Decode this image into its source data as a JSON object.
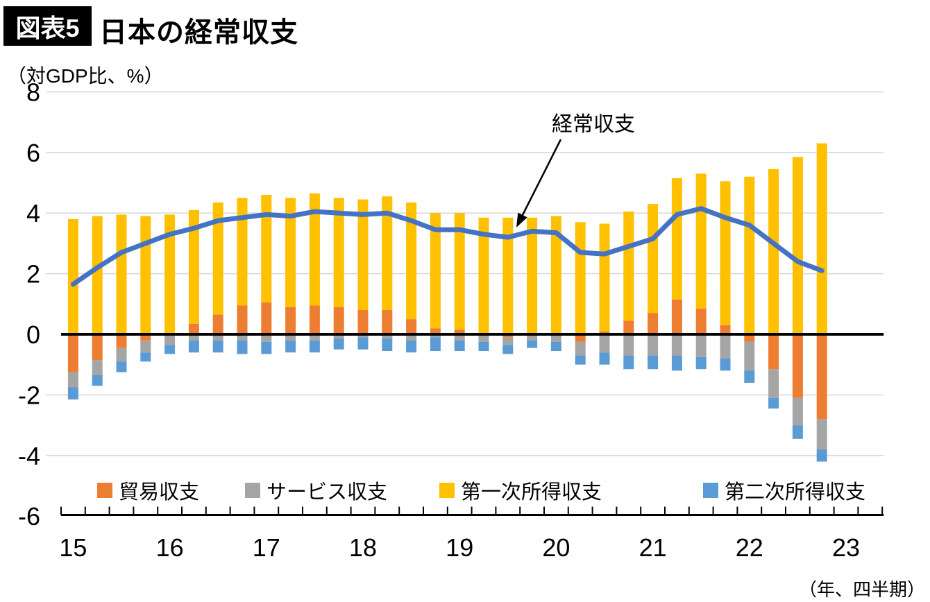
{
  "figure": {
    "tag": "図表5",
    "title": "日本の経常収支",
    "unit_label": "（対GDP比、%）",
    "axis_note": "（年、四半期）",
    "line_annotation": "経常収支"
  },
  "colors": {
    "trade_balance": "#ED7D31",
    "services_balance": "#A5A5A5",
    "primary_income": "#FFC000",
    "secondary_income": "#5B9BD5",
    "current_account_line": "#4472C4",
    "gridline": "#D9D9D9",
    "axis": "#000000"
  },
  "chart_data": {
    "type": "bar",
    "subtype": "stacked-bars-with-line",
    "title": "日本の経常収支",
    "ylabel": "（対GDP比、%）",
    "xlabel": "（年、四半期）",
    "ylim": [
      -6,
      8
    ],
    "ytick_step": 2,
    "ytick_labels": [
      "8",
      "6",
      "4",
      "2",
      "0",
      "-2",
      "-4",
      "-6"
    ],
    "grid": true,
    "legend_position": "bottom-inside",
    "categories": [
      "15Q1",
      "15Q2",
      "15Q3",
      "15Q4",
      "16Q1",
      "16Q2",
      "16Q3",
      "16Q4",
      "17Q1",
      "17Q2",
      "17Q3",
      "17Q4",
      "18Q1",
      "18Q2",
      "18Q3",
      "18Q4",
      "19Q1",
      "19Q2",
      "19Q3",
      "19Q4",
      "20Q1",
      "20Q2",
      "20Q3",
      "20Q4",
      "21Q1",
      "21Q2",
      "21Q3",
      "21Q4",
      "22Q1",
      "22Q2",
      "22Q3",
      "22Q4"
    ],
    "x_year_labels": [
      "15",
      "16",
      "17",
      "18",
      "19",
      "20",
      "21",
      "22",
      "23"
    ],
    "series": [
      {
        "name": "貿易収支",
        "type": "bar",
        "color": "#ED7D31",
        "values": [
          -1.25,
          -0.85,
          -0.45,
          -0.2,
          0,
          0.35,
          0.65,
          0.95,
          1.05,
          0.9,
          0.95,
          0.9,
          0.8,
          0.8,
          0.5,
          0.2,
          0.15,
          0,
          -0.1,
          0,
          0,
          -0.25,
          0.1,
          0.45,
          0.7,
          1.15,
          0.85,
          0.3,
          -0.25,
          -1.15,
          -2.1,
          -2.8
        ]
      },
      {
        "name": "サービス収支",
        "type": "bar",
        "color": "#A5A5A5",
        "values": [
          -0.5,
          -0.5,
          -0.45,
          -0.4,
          -0.35,
          -0.2,
          -0.2,
          -0.2,
          -0.25,
          -0.2,
          -0.2,
          -0.15,
          -0.1,
          -0.15,
          -0.2,
          -0.1,
          -0.2,
          -0.25,
          -0.25,
          -0.2,
          -0.25,
          -0.45,
          -0.6,
          -0.7,
          -0.7,
          -0.7,
          -0.75,
          -0.8,
          -0.95,
          -0.95,
          -0.9,
          -1.0
        ]
      },
      {
        "name": "第一次所得収支",
        "type": "bar",
        "color": "#FFC000",
        "values": [
          3.8,
          3.9,
          3.95,
          3.9,
          3.95,
          3.75,
          3.7,
          3.55,
          3.55,
          3.6,
          3.7,
          3.6,
          3.65,
          3.75,
          3.85,
          3.8,
          3.85,
          3.85,
          3.85,
          3.85,
          3.9,
          3.7,
          3.55,
          3.6,
          3.6,
          4.0,
          4.45,
          4.75,
          5.2,
          5.45,
          5.85,
          6.3
        ]
      },
      {
        "name": "第二次所得収支",
        "type": "bar",
        "color": "#5B9BD5",
        "values": [
          -0.4,
          -0.35,
          -0.35,
          -0.3,
          -0.3,
          -0.4,
          -0.4,
          -0.45,
          -0.4,
          -0.4,
          -0.4,
          -0.35,
          -0.4,
          -0.4,
          -0.4,
          -0.45,
          -0.35,
          -0.3,
          -0.3,
          -0.25,
          -0.3,
          -0.3,
          -0.4,
          -0.45,
          -0.45,
          -0.5,
          -0.4,
          -0.4,
          -0.4,
          -0.35,
          -0.45,
          -0.4
        ]
      },
      {
        "name": "経常収支",
        "type": "line",
        "color": "#4472C4",
        "values": [
          1.65,
          2.2,
          2.7,
          3.0,
          3.3,
          3.5,
          3.75,
          3.85,
          3.95,
          3.9,
          4.05,
          4.0,
          3.95,
          4.0,
          3.75,
          3.45,
          3.45,
          3.3,
          3.2,
          3.4,
          3.35,
          2.7,
          2.65,
          2.9,
          3.15,
          3.95,
          4.15,
          3.85,
          3.6,
          3.0,
          2.4,
          2.1
        ]
      }
    ]
  }
}
